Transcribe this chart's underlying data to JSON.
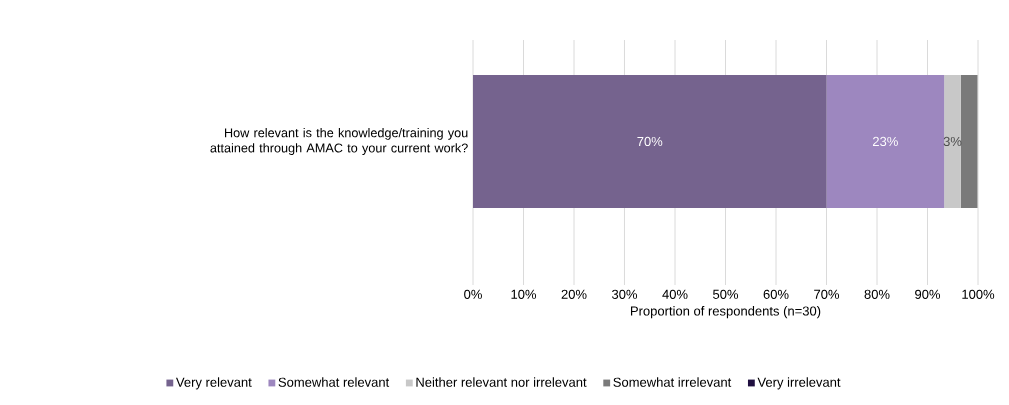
{
  "chart_data": {
    "type": "bar",
    "orientation": "horizontal",
    "stacked": true,
    "xlabel": "Proportion of respondents (n=30)",
    "categories": [
      "How relevant is the knowledge/training you attained through AMAC to your current work?"
    ],
    "series": [
      {
        "name": "Very relevant",
        "color": "#75638e",
        "values": [
          70
        ],
        "value_labels": [
          "70%"
        ]
      },
      {
        "name": "Somewhat relevant",
        "color": "#9d87bf",
        "values": [
          23.3
        ],
        "value_labels": [
          "23%"
        ]
      },
      {
        "name": "Neither relevant nor irrelevant",
        "color": "#c8c8c8",
        "values": [
          3.3
        ],
        "value_labels": [
          "3%"
        ]
      },
      {
        "name": "Somewhat irrelevant",
        "color": "#7a7a7a",
        "values": [
          3.3
        ],
        "value_labels": [
          null
        ]
      },
      {
        "name": "Very irrelevant",
        "color": "#1f0f3f",
        "values": [
          0
        ],
        "value_labels": [
          null
        ]
      }
    ],
    "xlim": [
      0,
      100
    ],
    "xticks": [
      {
        "value": 0,
        "label": "0%"
      },
      {
        "value": 10,
        "label": "10%"
      },
      {
        "value": 20,
        "label": "20%"
      },
      {
        "value": 30,
        "label": "30%"
      },
      {
        "value": 40,
        "label": "40%"
      },
      {
        "value": 50,
        "label": "50%"
      },
      {
        "value": 60,
        "label": "60%"
      },
      {
        "value": 70,
        "label": "70%"
      },
      {
        "value": 80,
        "label": "80%"
      },
      {
        "value": 90,
        "label": "90%"
      },
      {
        "value": 100,
        "label": "100%"
      }
    ],
    "grid": "x",
    "legend": "bottom"
  }
}
